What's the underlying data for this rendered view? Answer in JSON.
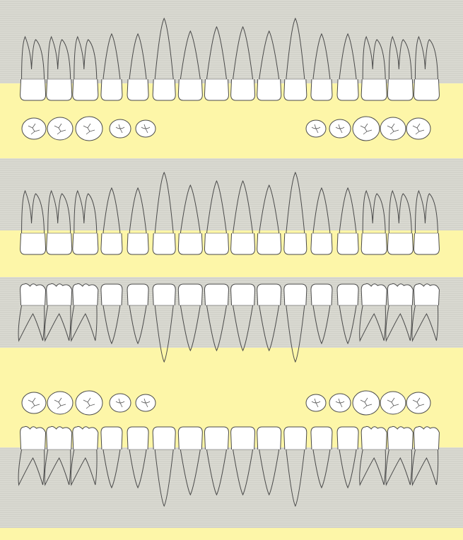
{
  "palette": {
    "background": "#fdf6a8",
    "band": "#dcdcd4",
    "band_line": "#b8b8b0",
    "tooth_fill": "#ffffff",
    "outline": "#4a4a4a",
    "fissure": "#555555"
  },
  "rows": [
    {
      "id": "upper-buccal-roots",
      "jaw": "maxillary",
      "view": "buccal",
      "teeth": 16
    },
    {
      "id": "upper-occlusal",
      "jaw": "maxillary",
      "view": "occlusal",
      "teeth": 10
    },
    {
      "id": "upper-lingual-roots",
      "jaw": "maxillary",
      "view": "lingual",
      "teeth": 16
    },
    {
      "id": "lower-lingual-roots",
      "jaw": "mandibular",
      "view": "lingual",
      "teeth": 16
    },
    {
      "id": "lower-occlusal",
      "jaw": "mandibular",
      "view": "occlusal",
      "teeth": 10
    },
    {
      "id": "lower-buccal-roots",
      "jaw": "mandibular",
      "view": "buccal",
      "teeth": 16
    }
  ],
  "tooth_order": [
    "molar",
    "molar",
    "molar",
    "premolar",
    "premolar",
    "canine",
    "incisor",
    "incisor",
    "incisor",
    "incisor",
    "canine",
    "premolar",
    "premolar",
    "molar",
    "molar",
    "molar"
  ]
}
